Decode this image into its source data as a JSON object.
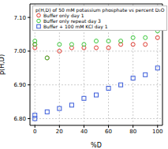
{
  "chart_data": {
    "type": "scatter",
    "title": "p(H,D) of 50 mM potassium phosphate vs percent D₂O",
    "x_label": "%D",
    "y_label": "p(H,D)",
    "x": [
      0,
      0,
      10,
      20,
      30,
      40,
      50,
      60,
      70,
      80,
      90,
      100
    ],
    "series": [
      {
        "name": "Buffer only day 1",
        "color": "#e03c31",
        "marker": "circle",
        "values": [
          7.02,
          7.01,
          6.98,
          7.0,
          7.01,
          7.01,
          7.01,
          7.01,
          7.02,
          7.02,
          7.02,
          7.04
        ]
      },
      {
        "name": "Buffer only repeat day 3",
        "color": "#3cc83c",
        "marker": "circle",
        "values": [
          7.03,
          7.02,
          6.98,
          7.02,
          7.02,
          7.02,
          7.03,
          7.03,
          7.03,
          7.04,
          7.04,
          7.06
        ]
      },
      {
        "name": "Buffer + 100 mM KCl day 1",
        "color": "#3a5bd9",
        "marker": "square",
        "values": [
          6.8,
          6.81,
          6.82,
          6.83,
          6.84,
          6.86,
          6.87,
          6.89,
          6.9,
          6.92,
          6.93,
          6.95
        ]
      }
    ],
    "xlim": [
      -4,
      104
    ],
    "xticks": [
      0,
      20,
      40,
      60,
      80,
      100
    ],
    "ylim": [
      6.78,
      7.14
    ],
    "yticks": [
      {
        "value": 6.8,
        "label": "6.80"
      },
      {
        "value": 6.9,
        "label": "6.90"
      },
      {
        "value": 7.0,
        "label": "7.00"
      },
      {
        "value": 7.1,
        "label": "7.10"
      }
    ],
    "grid": true,
    "legend": "upper left"
  }
}
